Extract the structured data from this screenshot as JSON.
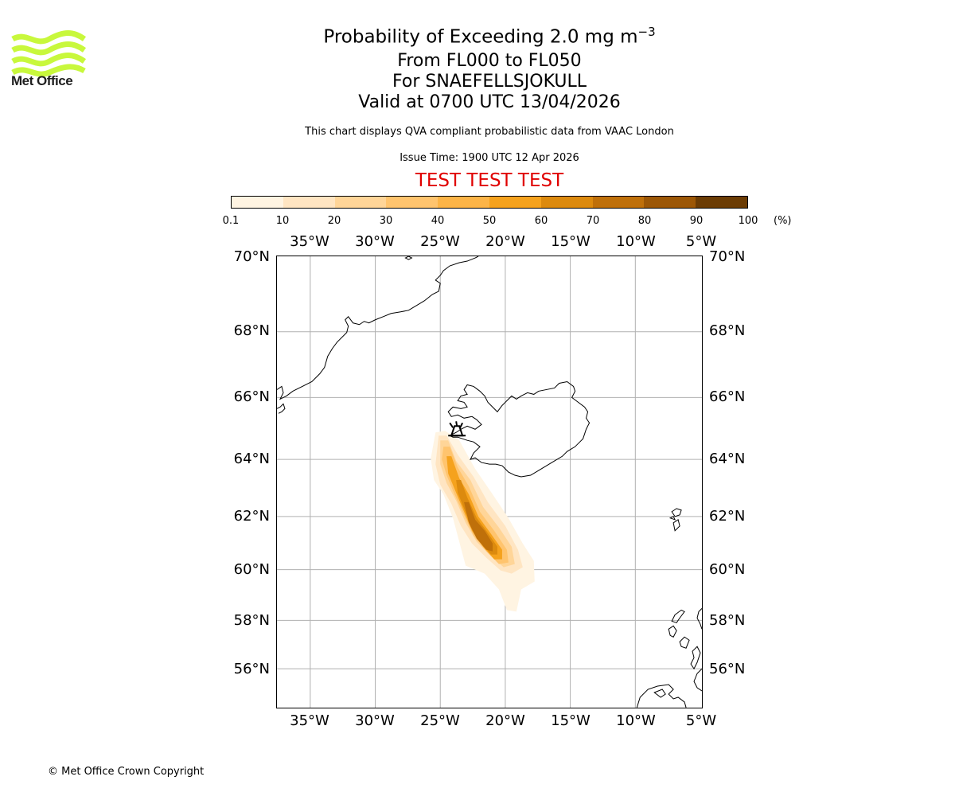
{
  "logo": {
    "text": "Met Office",
    "color": "#c8f83c"
  },
  "title": {
    "main": "Probability of Exceeding 2.0 mg m",
    "superscript": "−3"
  },
  "subtitle": {
    "levels": "From FL000 to FL050",
    "location": "For SNAEFELLSJOKULL",
    "valid": "Valid at 0700 UTC 13/04/2026"
  },
  "description": "This chart displays QVA compliant probabilistic data from VAAC London",
  "issue_time": "Issue Time: 1900 UTC 12 Apr 2026",
  "test_banner": "TEST TEST TEST",
  "colorbar": {
    "ticks": [
      "0.1",
      "10",
      "20",
      "30",
      "40",
      "50",
      "60",
      "70",
      "80",
      "90",
      "100"
    ],
    "unit": "(%)",
    "colors": [
      "#fff4e2",
      "#ffe5c2",
      "#ffd598",
      "#ffc46e",
      "#fcb447",
      "#f5a21d",
      "#dc8a0e",
      "#bf700a",
      "#9c5706",
      "#6b3c04"
    ]
  },
  "axes": {
    "lon_labels": [
      "35°W",
      "30°W",
      "25°W",
      "20°W",
      "15°W",
      "10°W",
      "5°W"
    ],
    "lat_labels": [
      "70°N",
      "68°N",
      "66°N",
      "64°N",
      "62°N",
      "60°N",
      "58°N",
      "56°N"
    ]
  },
  "map": {
    "volcano_icon": "volcano-icon",
    "plume_bins": [
      {
        "band": "10-20",
        "cells": 3
      },
      {
        "band": "50-60",
        "cells": 2
      }
    ]
  },
  "copyright": "© Met Office Crown Copyright"
}
